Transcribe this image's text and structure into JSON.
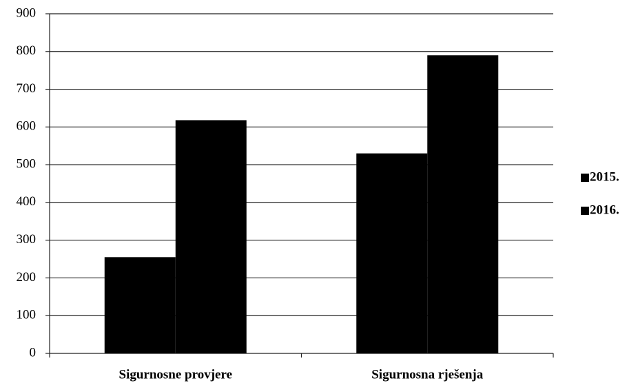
{
  "chart_data": {
    "type": "bar",
    "categories": [
      "Sigurnosne provjere",
      "Sigurnosna rješenja"
    ],
    "series": [
      {
        "name": "2015.",
        "color": "#000000",
        "values": [
          255,
          530
        ]
      },
      {
        "name": "2016.",
        "color": "#000000",
        "values": [
          618,
          790
        ]
      }
    ],
    "ylim": [
      0,
      900
    ],
    "yticks": [
      0,
      100,
      200,
      300,
      400,
      500,
      600,
      700,
      800,
      900
    ],
    "grid": true,
    "legend": "right"
  }
}
